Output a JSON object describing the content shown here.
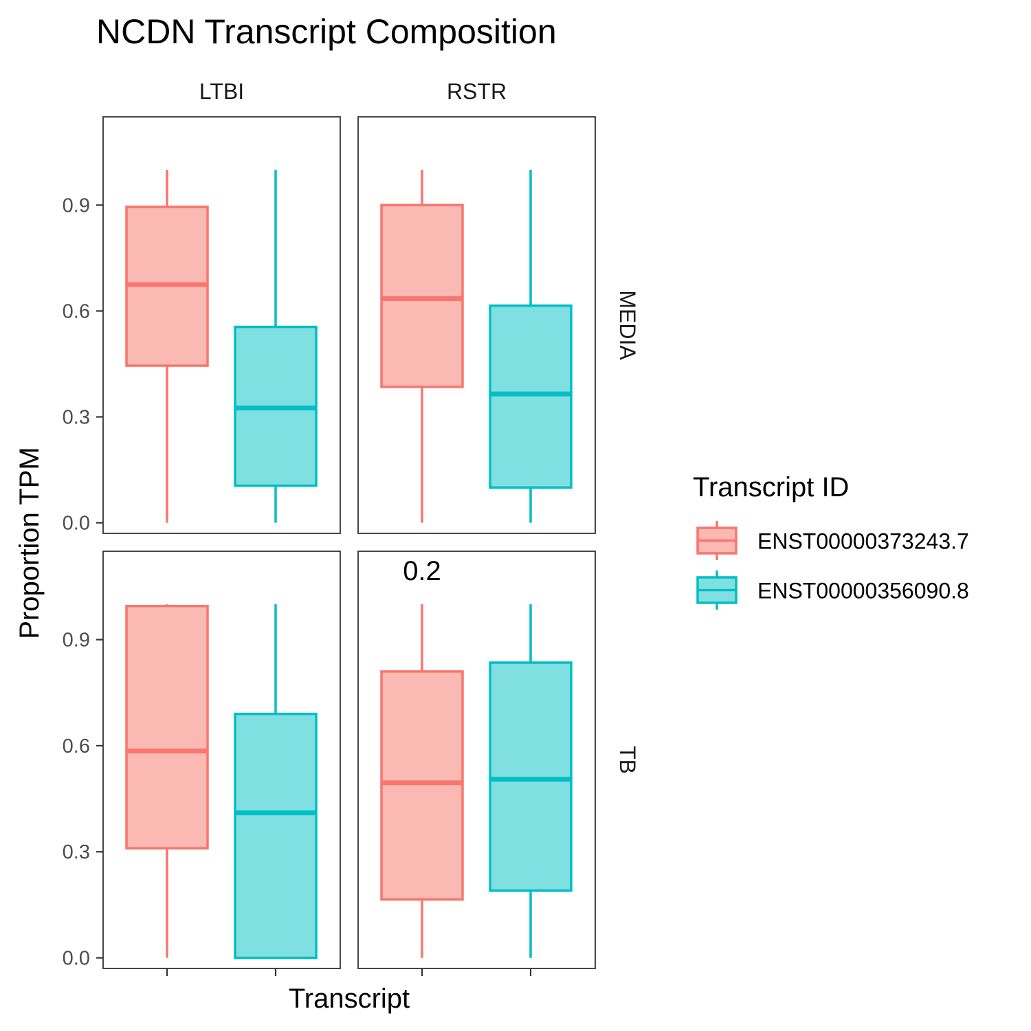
{
  "chart_data": {
    "type": "boxplot",
    "title": "NCDN Transcript Composition",
    "xlabel": "Transcript",
    "ylabel": "Proportion TPM",
    "ylim": [
      -0.03,
      1.15
    ],
    "yticks": [
      0.0,
      0.3,
      0.6,
      0.9
    ],
    "ytick_labels": [
      "0.0",
      "0.3",
      "0.6",
      "0.9"
    ],
    "x_tick_labels_shown": false,
    "facet_columns": [
      "LTBI",
      "RSTR"
    ],
    "facet_rows": [
      "MEDIA",
      "TB"
    ],
    "legend": {
      "title": "Transcript ID",
      "position": "right",
      "entries": [
        {
          "label": "ENST00000373243.7",
          "color": "#F8766D",
          "fill": "#FBB9B4"
        },
        {
          "label": "ENST00000356090.8",
          "color": "#00BFC4",
          "fill": "#80DFE1"
        }
      ]
    },
    "panels": [
      {
        "row": "MEDIA",
        "col": "LTBI",
        "annotation": "",
        "boxes": [
          {
            "series": "ENST00000373243.7",
            "lower_whisker": 0.0,
            "q1": 0.445,
            "median": 0.675,
            "q3": 0.895,
            "upper_whisker": 1.0
          },
          {
            "series": "ENST00000356090.8",
            "lower_whisker": 0.0,
            "q1": 0.105,
            "median": 0.325,
            "q3": 0.555,
            "upper_whisker": 1.0
          }
        ]
      },
      {
        "row": "MEDIA",
        "col": "RSTR",
        "annotation": "",
        "boxes": [
          {
            "series": "ENST00000373243.7",
            "lower_whisker": 0.0,
            "q1": 0.385,
            "median": 0.635,
            "q3": 0.9,
            "upper_whisker": 1.0
          },
          {
            "series": "ENST00000356090.8",
            "lower_whisker": 0.0,
            "q1": 0.1,
            "median": 0.365,
            "q3": 0.615,
            "upper_whisker": 1.0
          }
        ]
      },
      {
        "row": "TB",
        "col": "LTBI",
        "annotation": "",
        "boxes": [
          {
            "series": "ENST00000373243.7",
            "lower_whisker": 0.0,
            "q1": 0.31,
            "median": 0.585,
            "q3": 0.995,
            "upper_whisker": 1.0
          },
          {
            "series": "ENST00000356090.8",
            "lower_whisker": 0.0,
            "q1": 0.0,
            "median": 0.41,
            "q3": 0.69,
            "upper_whisker": 1.0
          }
        ]
      },
      {
        "row": "TB",
        "col": "RSTR",
        "annotation": "0.2",
        "boxes": [
          {
            "series": "ENST00000373243.7",
            "lower_whisker": 0.0,
            "q1": 0.165,
            "median": 0.495,
            "q3": 0.81,
            "upper_whisker": 1.0
          },
          {
            "series": "ENST00000356090.8",
            "lower_whisker": 0.0,
            "q1": 0.19,
            "median": 0.505,
            "q3": 0.835,
            "upper_whisker": 1.0
          }
        ]
      }
    ]
  }
}
